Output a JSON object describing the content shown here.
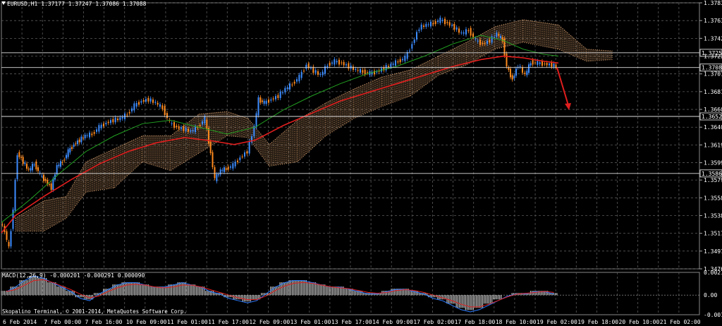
{
  "header": {
    "symbol": "EURUSD,H1",
    "ohlc": "1.37177 1.37247 1.37086 1.37088"
  },
  "macd": {
    "label": "MACD(12,26,9) -0.000201 -0.000291 0.000090"
  },
  "copyright": "Skopalino Terminal, © 2001-2014, MetaQuotes Software Corp.",
  "colors": {
    "background": "#000000",
    "grid": "#5a5a5a",
    "candle_up": "#3c8cff",
    "candle_down": "#ff8a1e",
    "ma_fast": "#e01e1e",
    "ma_slow": "#22a022",
    "cloud": "#d8a070",
    "macd_hist": "#c8c8c8",
    "arrow": "#e01e1e"
  },
  "chart_data": {
    "type": "line",
    "title": "EURUSD,H1",
    "y_ticks": [
      "1.37835",
      "1.37630",
      "1.37425",
      "1.37220",
      "1.37015",
      "1.36810",
      "1.36605",
      "1.36400",
      "1.36195",
      "1.35990",
      "1.35790",
      "1.35585",
      "1.35380",
      "1.35175",
      "1.34970",
      "1.34765"
    ],
    "ylim": [
      1.34765,
      1.37835
    ],
    "highlighted_levels": [
      "1.37258",
      "1.37088",
      "1.36524",
      "1.35866"
    ],
    "x_ticks": [
      "6 Feb 2014",
      "7 Feb 00:00",
      "7 Feb 16:00",
      "10 Feb 09:00",
      "11 Feb 01:00",
      "11 Feb 17:00",
      "12 Feb 09:00",
      "13 Feb 01:00",
      "13 Feb 17:00",
      "14 Feb 09:00",
      "17 Feb 02:00",
      "17 Feb 18:00",
      "18 Feb 10:00",
      "19 Feb 02:00",
      "19 Feb 18:00",
      "20 Feb 10:00",
      "21 Feb 02:00"
    ],
    "price": [
      [
        0,
        1.353
      ],
      [
        6,
        1.352
      ],
      [
        12,
        1.35
      ],
      [
        18,
        1.3545
      ],
      [
        24,
        1.361
      ],
      [
        32,
        1.36
      ],
      [
        40,
        1.359
      ],
      [
        48,
        1.3598
      ],
      [
        56,
        1.3585
      ],
      [
        64,
        1.3578
      ],
      [
        72,
        1.357
      ],
      [
        80,
        1.3595
      ],
      [
        88,
        1.36
      ],
      [
        96,
        1.3612
      ],
      [
        104,
        1.362
      ],
      [
        112,
        1.3625
      ],
      [
        120,
        1.363
      ],
      [
        130,
        1.3632
      ],
      [
        140,
        1.364
      ],
      [
        150,
        1.3645
      ],
      [
        160,
        1.3648
      ],
      [
        170,
        1.365
      ],
      [
        180,
        1.3655
      ],
      [
        190,
        1.3665
      ],
      [
        200,
        1.367
      ],
      [
        210,
        1.3672
      ],
      [
        220,
        1.3668
      ],
      [
        230,
        1.3662
      ],
      [
        240,
        1.3645
      ],
      [
        250,
        1.364
      ],
      [
        260,
        1.3638
      ],
      [
        270,
        1.3635
      ],
      [
        280,
        1.364
      ],
      [
        290,
        1.365
      ],
      [
        298,
        1.361
      ],
      [
        304,
        1.358
      ],
      [
        312,
        1.359
      ],
      [
        320,
        1.3592
      ],
      [
        330,
        1.3596
      ],
      [
        340,
        1.3605
      ],
      [
        350,
        1.3612
      ],
      [
        360,
        1.364
      ],
      [
        366,
        1.3672
      ],
      [
        374,
        1.3668
      ],
      [
        384,
        1.3672
      ],
      [
        394,
        1.3676
      ],
      [
        404,
        1.3684
      ],
      [
        414,
        1.369
      ],
      [
        424,
        1.3698
      ],
      [
        434,
        1.3712
      ],
      [
        444,
        1.3705
      ],
      [
        454,
        1.37
      ],
      [
        464,
        1.3712
      ],
      [
        474,
        1.3716
      ],
      [
        484,
        1.3714
      ],
      [
        494,
        1.371
      ],
      [
        504,
        1.3706
      ],
      [
        514,
        1.3704
      ],
      [
        524,
        1.3702
      ],
      [
        534,
        1.3704
      ],
      [
        544,
        1.3708
      ],
      [
        554,
        1.3712
      ],
      [
        564,
        1.3716
      ],
      [
        574,
        1.372
      ],
      [
        584,
        1.3736
      ],
      [
        594,
        1.3755
      ],
      [
        604,
        1.3758
      ],
      [
        614,
        1.376
      ],
      [
        624,
        1.3764
      ],
      [
        634,
        1.376
      ],
      [
        644,
        1.3755
      ],
      [
        654,
        1.3748
      ],
      [
        664,
        1.3752
      ],
      [
        674,
        1.374
      ],
      [
        684,
        1.3736
      ],
      [
        694,
        1.374
      ],
      [
        704,
        1.3748
      ],
      [
        712,
        1.374
      ],
      [
        718,
        1.371
      ],
      [
        726,
        1.3695
      ],
      [
        734,
        1.3712
      ],
      [
        744,
        1.37
      ],
      [
        752,
        1.3715
      ],
      [
        762,
        1.3714
      ],
      [
        772,
        1.3713
      ],
      [
        782,
        1.3712
      ],
      [
        788,
        1.371
      ]
    ],
    "ma_fast": [
      [
        0,
        1.3518
      ],
      [
        20,
        1.3538
      ],
      [
        60,
        1.356
      ],
      [
        100,
        1.358
      ],
      [
        140,
        1.3598
      ],
      [
        180,
        1.3612
      ],
      [
        220,
        1.3622
      ],
      [
        260,
        1.3628
      ],
      [
        300,
        1.3624
      ],
      [
        330,
        1.362
      ],
      [
        360,
        1.3625
      ],
      [
        400,
        1.3642
      ],
      [
        440,
        1.3656
      ],
      [
        480,
        1.367
      ],
      [
        520,
        1.368
      ],
      [
        560,
        1.369
      ],
      [
        600,
        1.37
      ],
      [
        640,
        1.371
      ],
      [
        680,
        1.3718
      ],
      [
        712,
        1.3722
      ],
      [
        740,
        1.372
      ],
      [
        770,
        1.3716
      ],
      [
        790,
        1.3714
      ]
    ],
    "ma_slow": [
      [
        0,
        1.353
      ],
      [
        40,
        1.3556
      ],
      [
        80,
        1.3585
      ],
      [
        120,
        1.3612
      ],
      [
        160,
        1.363
      ],
      [
        200,
        1.3644
      ],
      [
        240,
        1.3648
      ],
      [
        280,
        1.364
      ],
      [
        320,
        1.3632
      ],
      [
        360,
        1.364
      ],
      [
        400,
        1.366
      ],
      [
        440,
        1.3676
      ],
      [
        480,
        1.369
      ],
      [
        520,
        1.3702
      ],
      [
        560,
        1.371
      ],
      [
        600,
        1.3722
      ],
      [
        640,
        1.3736
      ],
      [
        680,
        1.3746
      ],
      [
        712,
        1.374
      ],
      [
        740,
        1.373
      ],
      [
        770,
        1.3724
      ],
      [
        790,
        1.3722
      ]
    ],
    "cloud": [
      [
        20,
        1.352,
        1.3535
      ],
      [
        60,
        1.352,
        1.3555
      ],
      [
        92,
        1.3535,
        1.356
      ],
      [
        120,
        1.3565,
        1.36
      ],
      [
        160,
        1.357,
        1.3615
      ],
      [
        200,
        1.36,
        1.363
      ],
      [
        240,
        1.359,
        1.363
      ],
      [
        280,
        1.361,
        1.3655
      ],
      [
        320,
        1.363,
        1.3658
      ],
      [
        350,
        1.3628,
        1.365
      ],
      [
        380,
        1.3595,
        1.362
      ],
      [
        420,
        1.36,
        1.3648
      ],
      [
        460,
        1.363,
        1.3668
      ],
      [
        500,
        1.365,
        1.3684
      ],
      [
        540,
        1.3664,
        1.3698
      ],
      [
        580,
        1.3676,
        1.3706
      ],
      [
        620,
        1.37,
        1.3722
      ],
      [
        660,
        1.3712,
        1.3738
      ],
      [
        700,
        1.373,
        1.3756
      ],
      [
        740,
        1.3738,
        1.3764
      ],
      [
        790,
        1.373,
        1.3758
      ],
      [
        830,
        1.3716,
        1.373
      ],
      [
        866,
        1.3718,
        1.3728
      ]
    ],
    "forecast_arrow": [
      [
        788,
        1.37088
      ],
      [
        804,
        1.36605
      ]
    ],
    "macd_hist": [
      0.0004,
      0.0008,
      0.0014,
      0.0018,
      0.0016,
      0.0012,
      0.0008,
      0.0004,
      -0.0002,
      -0.0004,
      0.0002,
      0.0006,
      0.001,
      0.0012,
      0.0012,
      0.001,
      0.0008,
      0.0008,
      0.001,
      0.0012,
      0.001,
      0.0008,
      0.0004,
      0.0002,
      -0.0002,
      -0.0004,
      -0.0006,
      -0.0004,
      0.0002,
      0.0008,
      0.0012,
      0.0014,
      0.0014,
      0.0012,
      0.001,
      0.0008,
      0.0008,
      0.0006,
      0.0004,
      0.0002,
      0.0002,
      0.0004,
      0.0006,
      0.0006,
      0.0004,
      0.0002,
      -0.0002,
      -0.0004,
      -0.0008,
      -0.0012,
      -0.0014,
      -0.0012,
      -0.0008,
      -0.0004,
      0.0,
      0.0002,
      0.0002,
      0.0004,
      0.0004,
      0.0002
    ],
    "macd_ticks": [
      "0.002128",
      "0.00",
      "-0.001838"
    ],
    "macd_ylim": [
      -0.001838,
      0.002128
    ]
  }
}
